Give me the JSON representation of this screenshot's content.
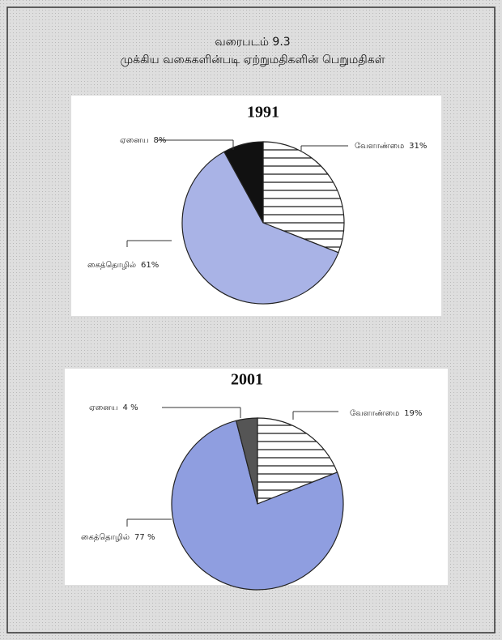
{
  "header": {
    "title": "வரைபடம் 9.3",
    "subtitle": "முக்கிய வகைகளின்படி ஏற்றுமதிகளின் பெறுமதிகள்"
  },
  "chart_data": [
    {
      "type": "pie",
      "title": "1991",
      "categories": [
        "வேளாண்மை",
        "கைத்தொழில்",
        "ஏனைய"
      ],
      "values": [
        31,
        61,
        8
      ],
      "value_labels": [
        "31%",
        "61%",
        "8%"
      ],
      "colors": [
        "#ffffff",
        "#a9b3e6",
        "#111111"
      ],
      "patterns": [
        "horizontal-lines",
        "solid",
        "solid"
      ]
    },
    {
      "type": "pie",
      "title": "2001",
      "categories": [
        "வேளாண்மை",
        "கைத்தொழில்",
        "ஏனைய"
      ],
      "values": [
        19,
        77,
        4
      ],
      "value_labels": [
        "19%",
        "77 %",
        "4 %"
      ],
      "colors": [
        "#ffffff",
        "#8f9ee0",
        "#555555"
      ],
      "patterns": [
        "horizontal-lines",
        "solid",
        "solid"
      ]
    }
  ]
}
